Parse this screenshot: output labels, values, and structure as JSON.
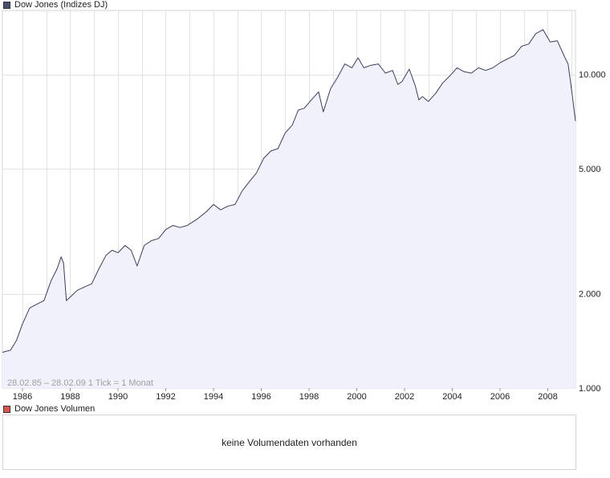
{
  "price_legend": {
    "label": "Dow Jones (Indizes DJ)",
    "color": "#4a4f6e"
  },
  "volume_legend": {
    "label": "Dow Jones Volumen",
    "color": "#d9534f"
  },
  "range_label": "28.02.85 – 28.02.09   1 Tick = 1 Monat",
  "volume_message": "keine Volumendaten vorhanden",
  "chart_data": {
    "type": "area",
    "title": "Dow Jones (Indizes DJ)",
    "y_scale": "log",
    "ylim": [
      1000,
      16000
    ],
    "y_ticks": [
      {
        "value": 1000,
        "label": "1.000"
      },
      {
        "value": 2000,
        "label": "2.000"
      },
      {
        "value": 5000,
        "label": "5.000"
      },
      {
        "value": 10000,
        "label": "10.000"
      }
    ],
    "xlim": [
      1985.16,
      2009.16
    ],
    "x_ticks": [
      "1986",
      "1988",
      "1990",
      "1992",
      "1994",
      "1996",
      "1998",
      "2000",
      "2002",
      "2004",
      "2006",
      "2008"
    ],
    "grid": true,
    "line_color": "#3a3f5c",
    "fill_color": "#f1f1fb",
    "series": [
      {
        "x": [
          1985.16,
          1985.5,
          1985.75,
          1986.0,
          1986.3,
          1986.6,
          1986.9,
          1987.2,
          1987.45,
          1987.62,
          1987.72,
          1987.84,
          1988.0,
          1988.3,
          1988.6,
          1988.9,
          1989.2,
          1989.5,
          1989.75,
          1990.0,
          1990.3,
          1990.55,
          1990.8,
          1991.1,
          1991.4,
          1991.7,
          1992.0,
          1992.3,
          1992.6,
          1992.9,
          1993.3,
          1993.7,
          1994.0,
          1994.3,
          1994.6,
          1994.9,
          1995.2,
          1995.5,
          1995.8,
          1996.1,
          1996.4,
          1996.7,
          1997.0,
          1997.3,
          1997.55,
          1997.8,
          1998.1,
          1998.4,
          1998.6,
          1998.9,
          1999.2,
          1999.5,
          1999.8,
          2000.05,
          2000.3,
          2000.6,
          2000.9,
          2001.2,
          2001.5,
          2001.72,
          2001.9,
          2002.2,
          2002.45,
          2002.6,
          2002.75,
          2003.0,
          2003.3,
          2003.6,
          2003.9,
          2004.2,
          2004.5,
          2004.8,
          2005.1,
          2005.4,
          2005.7,
          2006.0,
          2006.3,
          2006.6,
          2006.9,
          2007.2,
          2007.5,
          2007.8,
          2008.1,
          2008.4,
          2008.7,
          2008.85,
          2009.0,
          2009.16
        ],
        "values": [
          1300,
          1320,
          1420,
          1600,
          1800,
          1850,
          1900,
          2200,
          2400,
          2620,
          2500,
          1900,
          1950,
          2050,
          2100,
          2150,
          2400,
          2650,
          2750,
          2700,
          2850,
          2750,
          2450,
          2850,
          2950,
          3000,
          3200,
          3300,
          3250,
          3300,
          3450,
          3650,
          3850,
          3700,
          3800,
          3850,
          4250,
          4550,
          4850,
          5400,
          5700,
          5800,
          6500,
          6900,
          7700,
          7800,
          8300,
          8800,
          7600,
          9000,
          9800,
          10800,
          10500,
          11300,
          10500,
          10700,
          10800,
          10100,
          10300,
          9300,
          9500,
          10400,
          9200,
          8300,
          8500,
          8200,
          8700,
          9400,
          9900,
          10500,
          10200,
          10100,
          10500,
          10300,
          10500,
          10900,
          11200,
          11500,
          12300,
          12500,
          13500,
          13900,
          12700,
          12800,
          11400,
          10800,
          8900,
          7100
        ]
      }
    ]
  }
}
